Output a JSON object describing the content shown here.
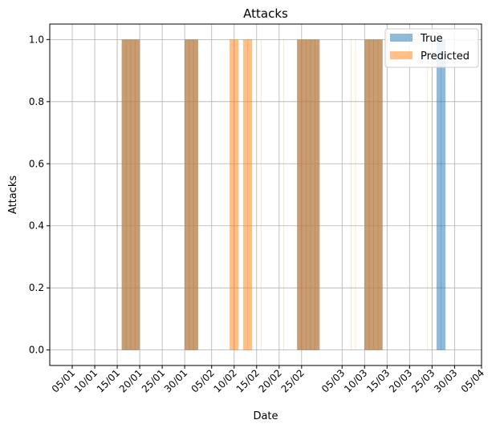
{
  "chart_data": {
    "type": "bar",
    "title": "Attacks",
    "xlabel": "Date",
    "ylabel": "Attacks",
    "ylim": [
      -0.05,
      1.05
    ],
    "x_range": [
      "2023-12-31",
      "2024-04-05"
    ],
    "y_ticks": [
      "0.0",
      "0.2",
      "0.4",
      "0.6",
      "0.8",
      "1.0"
    ],
    "y_tick_values": [
      0,
      0.2,
      0.4,
      0.6,
      0.8,
      1.0
    ],
    "x_ticks": [
      {
        "date": "2024-01-05",
        "label": "05/01"
      },
      {
        "date": "2024-01-10",
        "label": "10/01"
      },
      {
        "date": "2024-01-15",
        "label": "15/01"
      },
      {
        "date": "2024-01-20",
        "label": "20/01"
      },
      {
        "date": "2024-01-25",
        "label": "25/01"
      },
      {
        "date": "2024-01-30",
        "label": "30/01"
      },
      {
        "date": "2024-02-05",
        "label": "05/02"
      },
      {
        "date": "2024-02-10",
        "label": "10/02"
      },
      {
        "date": "2024-02-15",
        "label": "15/02"
      },
      {
        "date": "2024-02-20",
        "label": "20/02"
      },
      {
        "date": "2024-02-25",
        "label": "25/02"
      },
      {
        "date": "2024-03-05",
        "label": "05/03"
      },
      {
        "date": "2024-03-10",
        "label": "10/03"
      },
      {
        "date": "2024-03-15",
        "label": "15/03"
      },
      {
        "date": "2024-03-20",
        "label": "20/03"
      },
      {
        "date": "2024-03-25",
        "label": "25/03"
      },
      {
        "date": "2024-03-30",
        "label": "30/03"
      },
      {
        "date": "2024-04-05",
        "label": "05/04"
      }
    ],
    "grid": true,
    "legend_position": "top-right",
    "series": [
      {
        "name": "True",
        "color": "#1f77b4",
        "alpha": 0.5,
        "intervals": [
          {
            "start": "2024-01-16",
            "end": "2024-01-19",
            "value": 1
          },
          {
            "start": "2024-01-30",
            "end": "2024-02-01",
            "value": 1
          },
          {
            "start": "2024-02-24",
            "end": "2024-02-28",
            "value": 1
          },
          {
            "start": "2024-03-10",
            "end": "2024-03-13",
            "value": 1
          },
          {
            "start": "2024-03-26",
            "end": "2024-03-27",
            "value": 1
          }
        ]
      },
      {
        "name": "Predicted",
        "color": "#ff7f0e",
        "alpha": 0.5,
        "intervals": [
          {
            "start": "2024-01-16",
            "end": "2024-01-19",
            "value": 1
          },
          {
            "start": "2024-01-30",
            "end": "2024-02-01",
            "value": 1
          },
          {
            "start": "2024-02-09",
            "end": "2024-02-10",
            "value": 1
          },
          {
            "start": "2024-02-12",
            "end": "2024-02-13",
            "value": 1
          },
          {
            "start": "2024-02-24",
            "end": "2024-02-28",
            "value": 1
          },
          {
            "start": "2024-03-10",
            "end": "2024-03-13",
            "value": 1
          }
        ],
        "spikes": [
          "2024-01-15",
          "2024-02-16",
          "2024-02-21",
          "2024-03-07",
          "2024-03-08",
          "2024-03-24",
          "2024-03-25"
        ]
      }
    ]
  }
}
